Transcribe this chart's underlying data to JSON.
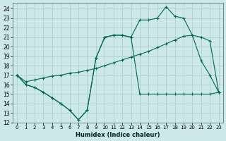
{
  "bg_color": "#cce8e8",
  "grid_color": "#aacccc",
  "line_color": "#006655",
  "xlabel": "Humidex (Indice chaleur)",
  "xlim": [
    -0.5,
    23.5
  ],
  "ylim": [
    12,
    24.6
  ],
  "yticks": [
    12,
    13,
    14,
    15,
    16,
    17,
    18,
    19,
    20,
    21,
    22,
    23,
    24
  ],
  "xticks": [
    0,
    1,
    2,
    3,
    4,
    5,
    6,
    7,
    8,
    9,
    10,
    11,
    12,
    13,
    14,
    15,
    16,
    17,
    18,
    19,
    20,
    21,
    22,
    23
  ],
  "line1_x": [
    0,
    1,
    2,
    3,
    4,
    5,
    6,
    7,
    8,
    9,
    10,
    11,
    12,
    13,
    14,
    15,
    16,
    17,
    18,
    19,
    20,
    21,
    22,
    23
  ],
  "line1_y": [
    17.0,
    16.0,
    15.7,
    15.2,
    14.6,
    14.0,
    13.3,
    12.3,
    13.3,
    18.8,
    21.0,
    21.2,
    21.2,
    21.0,
    15.0,
    15.0,
    15.0,
    15.0,
    15.0,
    15.0,
    15.0,
    15.0,
    15.0,
    15.2
  ],
  "line2_x": [
    0,
    1,
    2,
    3,
    4,
    5,
    6,
    7,
    8,
    9,
    10,
    11,
    12,
    13,
    14,
    15,
    16,
    17,
    18,
    19,
    20,
    21,
    22,
    23
  ],
  "line2_y": [
    17.0,
    16.0,
    15.7,
    15.2,
    14.6,
    14.0,
    13.3,
    12.3,
    13.3,
    18.8,
    21.0,
    21.2,
    21.2,
    21.0,
    22.8,
    22.8,
    23.0,
    24.2,
    23.2,
    23.0,
    21.2,
    18.5,
    17.0,
    15.2
  ],
  "line3_x": [
    0,
    1,
    2,
    3,
    4,
    5,
    6,
    7,
    8,
    9,
    10,
    11,
    12,
    13,
    14,
    15,
    16,
    17,
    18,
    19,
    20,
    21,
    22,
    23
  ],
  "line3_y": [
    17.0,
    16.3,
    16.5,
    16.7,
    16.9,
    17.0,
    17.2,
    17.3,
    17.5,
    17.7,
    18.0,
    18.3,
    18.6,
    18.9,
    19.2,
    19.5,
    19.9,
    20.3,
    20.7,
    21.1,
    21.2,
    21.0,
    20.6,
    15.2
  ]
}
